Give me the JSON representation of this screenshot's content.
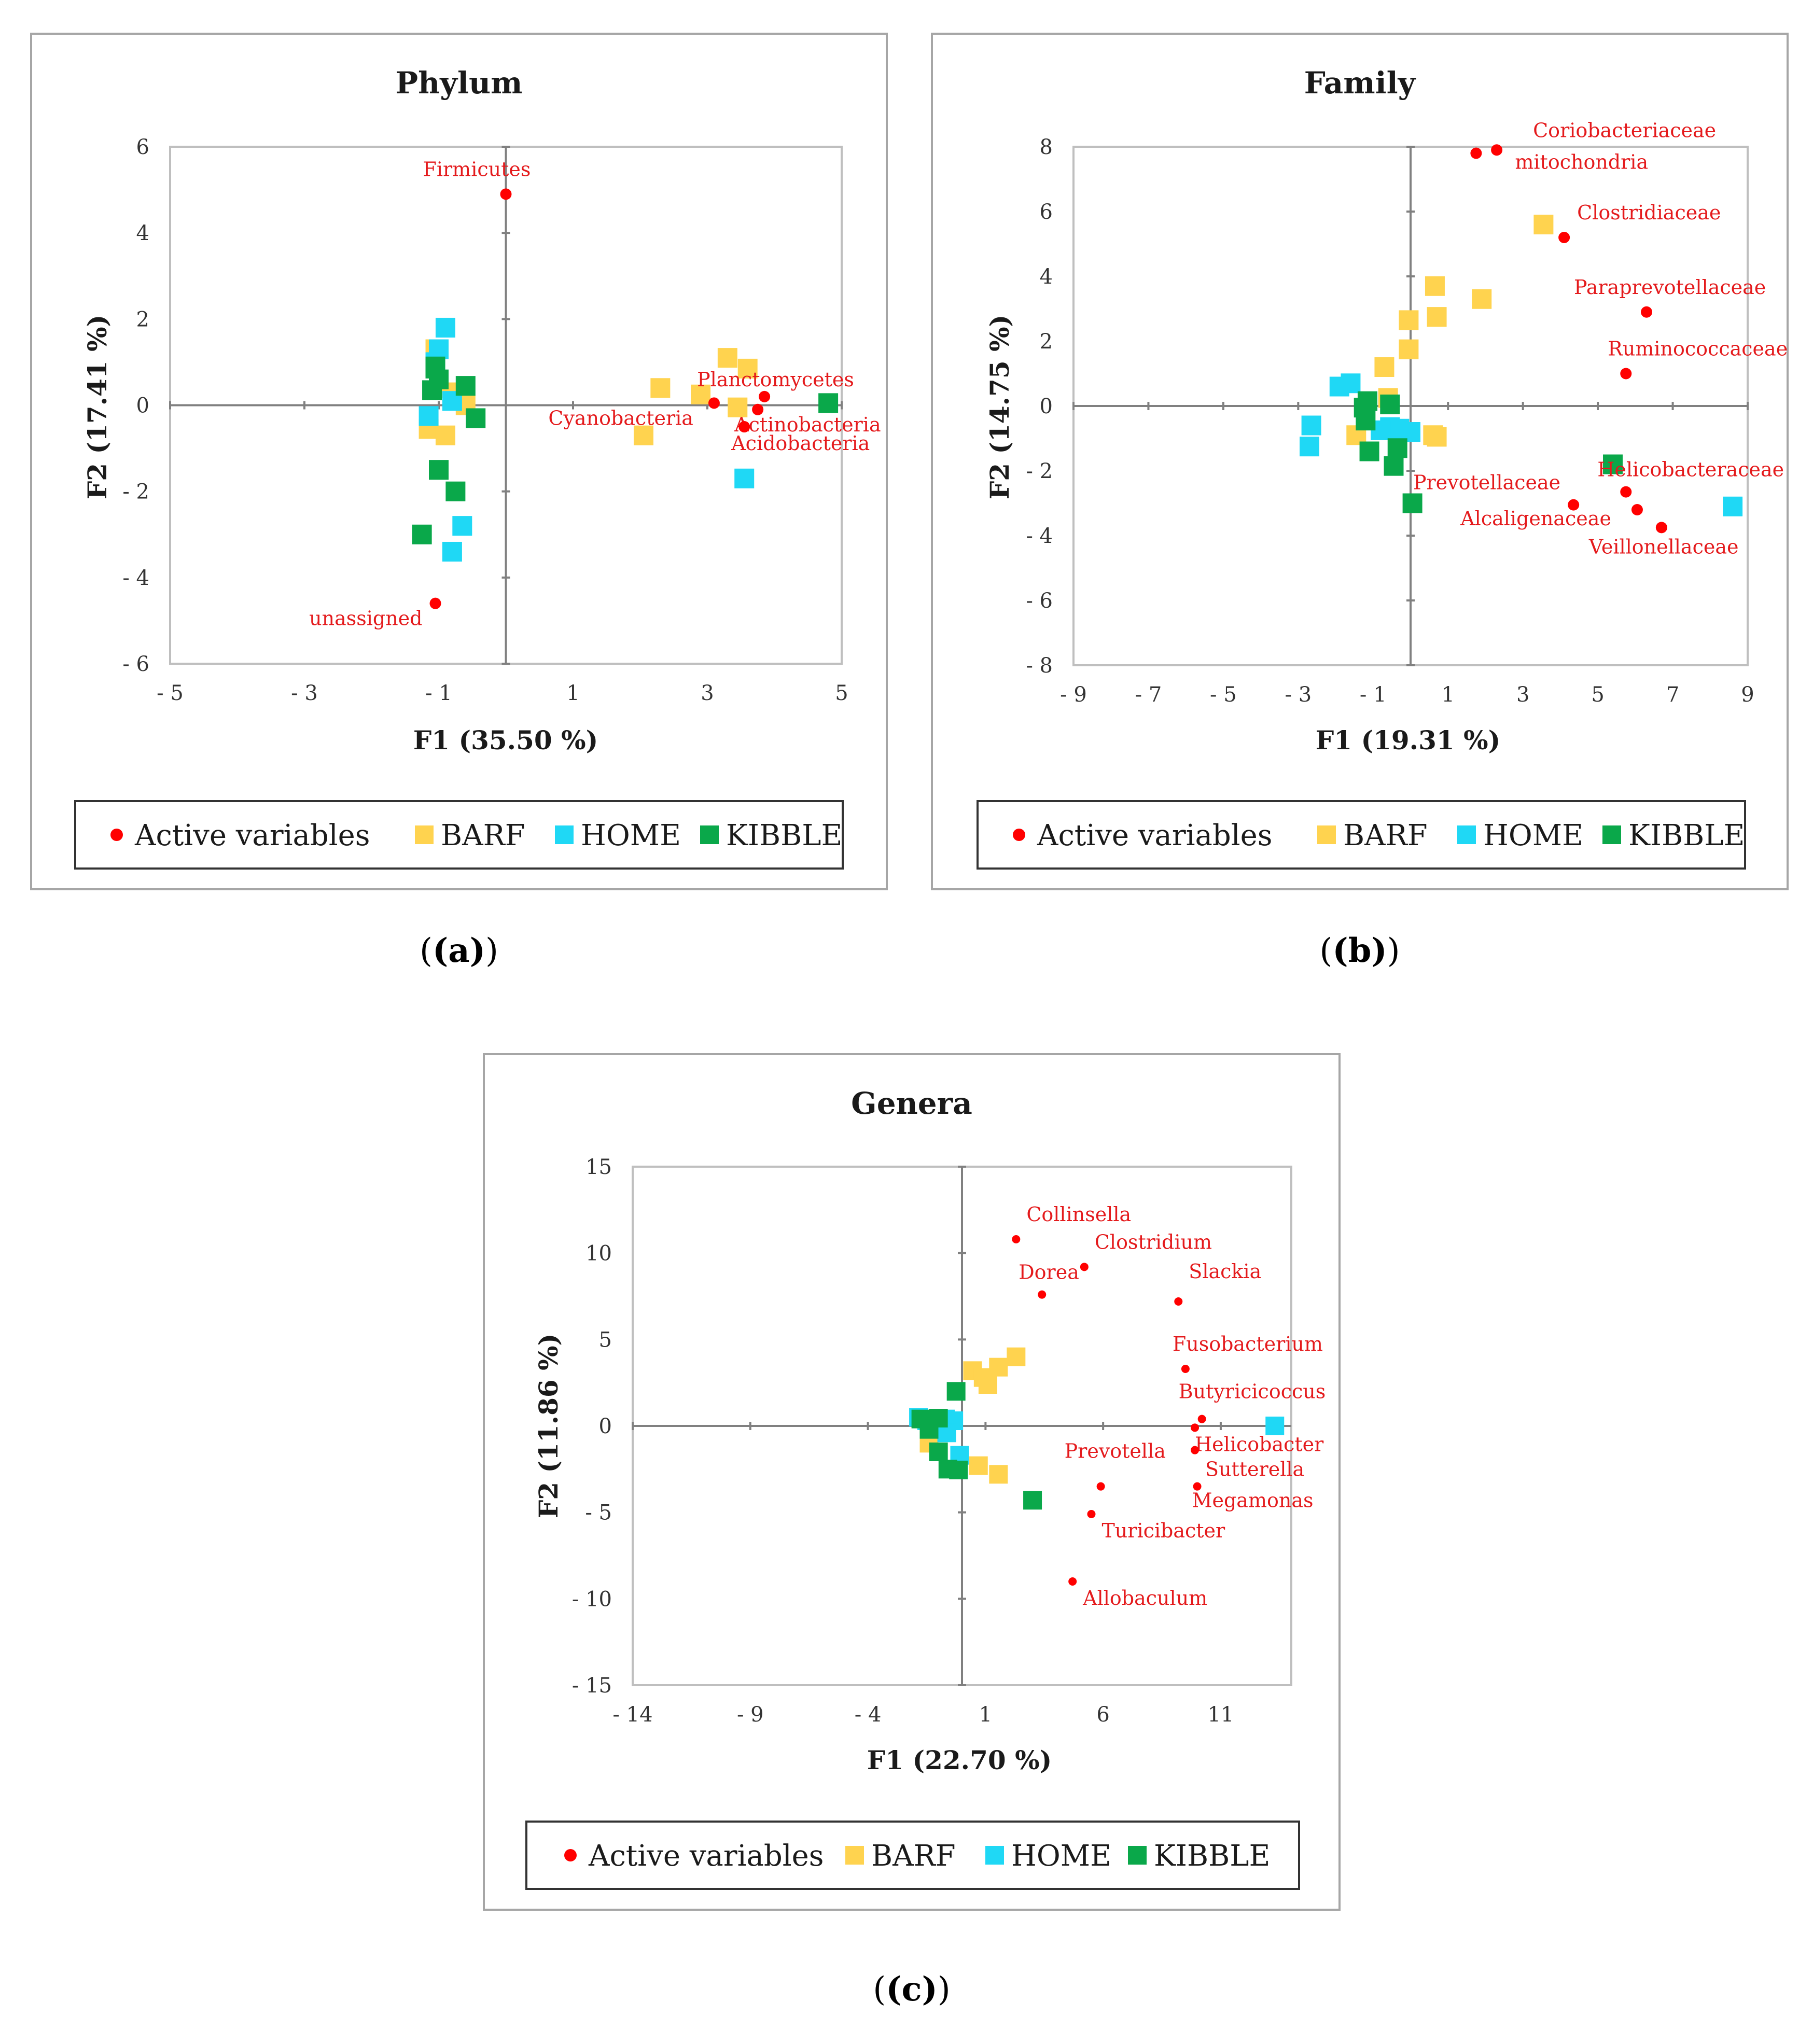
{
  "captions": [
    "(a)",
    "(b)",
    "(c)"
  ],
  "legend": {
    "entries": [
      {
        "name": "Active variables",
        "color": "#ff0000",
        "shape": "circle"
      },
      {
        "name": "BARF",
        "color": "#ffd34f",
        "shape": "square"
      },
      {
        "name": "HOME",
        "color": "#1fd8f5",
        "shape": "square"
      },
      {
        "name": "KIBBLE",
        "color": "#0aa84a",
        "shape": "square"
      }
    ]
  },
  "chart_data": [
    {
      "type": "scatter",
      "title": "Phylum",
      "xlabel": "F1 (35.50 %)",
      "ylabel": "F2 (17.41 %)",
      "xlim": [
        -5,
        5
      ],
      "ylim": [
        -6,
        6
      ],
      "xticks": [
        -5,
        -3,
        -1,
        1,
        3,
        5
      ],
      "yticks": [
        -6,
        -4,
        -2,
        0,
        2,
        4,
        6
      ],
      "active_variables": [
        {
          "name": "Firmicutes",
          "x": 0.0,
          "y": 4.9
        },
        {
          "name": "Planctomycetes",
          "x": 3.85,
          "y": 0.2
        },
        {
          "name": "Cyanobacteria",
          "x": 3.1,
          "y": 0.05
        },
        {
          "name": "Actinobacteria",
          "x": 3.75,
          "y": -0.1
        },
        {
          "name": "Acidobacteria",
          "x": 3.55,
          "y": -0.5
        },
        {
          "name": "unassigned",
          "x": -1.05,
          "y": -4.6
        }
      ],
      "series": [
        {
          "name": "BARF",
          "points": [
            [
              3.3,
              1.1
            ],
            [
              3.6,
              0.85
            ],
            [
              2.3,
              0.4
            ],
            [
              2.9,
              0.25
            ],
            [
              3.45,
              -0.05
            ],
            [
              2.05,
              -0.7
            ],
            [
              -1.15,
              -0.55
            ],
            [
              -0.9,
              -0.7
            ],
            [
              -1.0,
              0.4
            ],
            [
              -0.8,
              0.3
            ],
            [
              -0.6,
              0.0
            ],
            [
              -1.05,
              1.3
            ]
          ]
        },
        {
          "name": "HOME",
          "points": [
            [
              -0.9,
              1.8
            ],
            [
              -1.0,
              1.3
            ],
            [
              -1.05,
              1.0
            ],
            [
              -0.8,
              0.1
            ],
            [
              -1.15,
              -0.25
            ],
            [
              3.55,
              -1.7
            ],
            [
              -0.65,
              -2.8
            ],
            [
              -0.8,
              -3.4
            ]
          ]
        },
        {
          "name": "KIBBLE",
          "points": [
            [
              -1.05,
              0.85
            ],
            [
              -1.0,
              0.6
            ],
            [
              -1.1,
              0.35
            ],
            [
              -0.6,
              0.45
            ],
            [
              -0.45,
              -0.3
            ],
            [
              4.8,
              0.05
            ],
            [
              -1.0,
              -1.5
            ],
            [
              -0.75,
              -2.0
            ],
            [
              -1.25,
              -3.0
            ],
            [
              -1.05,
              0.9
            ]
          ]
        }
      ]
    },
    {
      "type": "scatter",
      "title": "Family",
      "xlabel": "F1 (19.31 %)",
      "ylabel": "F2 (14.75 %)",
      "xlim": [
        -9,
        9
      ],
      "ylim": [
        -8,
        8
      ],
      "xticks": [
        -9,
        -7,
        -5,
        -3,
        -1,
        1,
        3,
        5,
        7,
        9
      ],
      "yticks": [
        -8,
        -6,
        -4,
        -2,
        0,
        2,
        4,
        6,
        8
      ],
      "active_variables": [
        {
          "name": "Coriobacteriaceae",
          "x": 2.3,
          "y": 7.9
        },
        {
          "name": "mitochondria",
          "x": 1.75,
          "y": 7.8
        },
        {
          "name": "Clostridiaceae",
          "x": 4.1,
          "y": 5.2
        },
        {
          "name": "Paraprevotellaceae",
          "x": 6.3,
          "y": 2.9
        },
        {
          "name": "Ruminococcaceae",
          "x": 5.75,
          "y": 1.0
        },
        {
          "name": "Helicobacteraceae",
          "x": 5.75,
          "y": -2.65
        },
        {
          "name": "Prevotellaceae",
          "x": 4.35,
          "y": -3.05
        },
        {
          "name": "Alcaligenaceae",
          "x": 6.05,
          "y": -3.2
        },
        {
          "name": "Veillonellaceae",
          "x": 6.7,
          "y": -3.75
        }
      ],
      "series": [
        {
          "name": "BARF",
          "points": [
            [
              3.55,
              5.6
            ],
            [
              0.65,
              3.7
            ],
            [
              1.9,
              3.3
            ],
            [
              -0.05,
              2.65
            ],
            [
              0.7,
              2.75
            ],
            [
              -0.05,
              1.75
            ],
            [
              -0.7,
              1.2
            ],
            [
              -0.6,
              0.25
            ],
            [
              0.6,
              -0.9
            ],
            [
              0.7,
              -0.95
            ],
            [
              -1.45,
              -0.9
            ]
          ]
        },
        {
          "name": "HOME",
          "points": [
            [
              -1.6,
              0.7
            ],
            [
              -1.9,
              0.6
            ],
            [
              -2.65,
              -0.6
            ],
            [
              -2.7,
              -1.25
            ],
            [
              -0.55,
              -0.65
            ],
            [
              -0.3,
              -0.7
            ],
            [
              0.0,
              -0.8
            ],
            [
              -0.8,
              -0.75
            ],
            [
              8.6,
              -3.1
            ]
          ]
        },
        {
          "name": "KIBBLE",
          "points": [
            [
              -1.15,
              0.15
            ],
            [
              -0.55,
              0.05
            ],
            [
              -1.25,
              -0.05
            ],
            [
              -1.2,
              -0.45
            ],
            [
              -1.1,
              -1.4
            ],
            [
              -0.35,
              -1.3
            ],
            [
              -0.45,
              -1.85
            ],
            [
              0.05,
              -3.0
            ],
            [
              5.4,
              -1.8
            ]
          ]
        }
      ]
    },
    {
      "type": "scatter",
      "title": "Genera",
      "xlabel": "F1 (22.70 %)",
      "ylabel": "F2 (11.86 %)",
      "xlim": [
        -14,
        14
      ],
      "ylim": [
        -15,
        15
      ],
      "xticks": [
        -14,
        -9,
        -4,
        1,
        6,
        11
      ],
      "yticks": [
        -15,
        -10,
        -5,
        0,
        5,
        10,
        15
      ],
      "active_variables": [
        {
          "name": "Collinsella",
          "x": 2.3,
          "y": 10.8
        },
        {
          "name": "Clostridium",
          "x": 5.2,
          "y": 9.2
        },
        {
          "name": "Dorea",
          "x": 3.4,
          "y": 7.6
        },
        {
          "name": "Slackia",
          "x": 9.2,
          "y": 7.2
        },
        {
          "name": "Fusobacterium",
          "x": 9.5,
          "y": 3.3
        },
        {
          "name": "Butyricicoccus",
          "x": 10.2,
          "y": 0.4
        },
        {
          "name": "Helicobacter",
          "x": 9.9,
          "y": -0.1
        },
        {
          "name": "Sutterella",
          "x": 9.9,
          "y": -1.4
        },
        {
          "name": "Prevotella",
          "x": 5.9,
          "y": -3.5
        },
        {
          "name": "Megamonas",
          "x": 10.0,
          "y": -3.5
        },
        {
          "name": "Turicibacter",
          "x": 5.5,
          "y": -5.1
        },
        {
          "name": "Allobaculum",
          "x": 4.7,
          "y": -9.0
        }
      ],
      "series": [
        {
          "name": "BARF",
          "points": [
            [
              2.3,
              4.0
            ],
            [
              1.55,
              3.4
            ],
            [
              0.45,
              3.2
            ],
            [
              0.9,
              2.8
            ],
            [
              1.1,
              2.4
            ],
            [
              0.7,
              -2.3
            ],
            [
              1.55,
              -2.8
            ],
            [
              -1.4,
              -1.0
            ]
          ]
        },
        {
          "name": "HOME",
          "points": [
            [
              -1.85,
              0.5
            ],
            [
              -1.5,
              0.3
            ],
            [
              -0.7,
              0.4
            ],
            [
              -0.35,
              0.3
            ],
            [
              -0.65,
              -0.4
            ],
            [
              -0.1,
              -1.7
            ],
            [
              13.3,
              0.0
            ]
          ]
        },
        {
          "name": "KIBBLE",
          "points": [
            [
              -0.25,
              2.0
            ],
            [
              -1.75,
              0.4
            ],
            [
              -1.0,
              0.45
            ],
            [
              -1.4,
              -0.2
            ],
            [
              -1.0,
              -1.5
            ],
            [
              -0.6,
              -2.5
            ],
            [
              -0.15,
              -2.55
            ],
            [
              3.0,
              -4.3
            ]
          ]
        }
      ]
    }
  ]
}
